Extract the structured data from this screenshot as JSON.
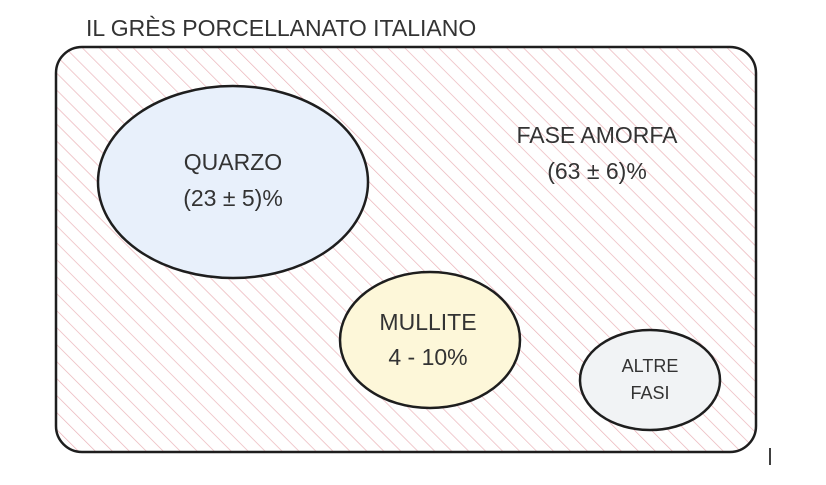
{
  "title": "IL GRÈS PORCELLANATO ITALIANO",
  "nodes": [
    {
      "lines": [
        "FASE AMORFA",
        "(63 ± 6)%"
      ]
    },
    {
      "lines": [
        "QUARZO",
        "(23 ± 5)%"
      ]
    },
    {
      "lines": [
        "MULLITE",
        "4 - 10%"
      ]
    },
    {
      "lines": [
        "ALTRE",
        "FASI"
      ]
    }
  ]
}
